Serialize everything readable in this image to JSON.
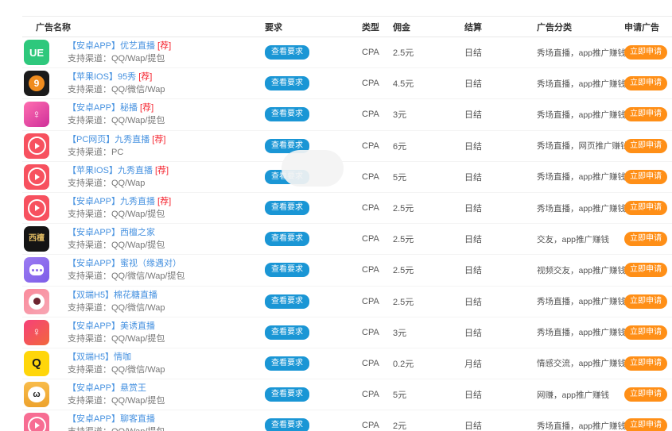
{
  "table": {
    "columns": [
      {
        "key": "name",
        "label": "广告名称"
      },
      {
        "key": "requirement",
        "label": "要求"
      },
      {
        "key": "type",
        "label": "类型"
      },
      {
        "key": "commission",
        "label": "佣金"
      },
      {
        "key": "settlement",
        "label": "结算"
      },
      {
        "key": "category",
        "label": "广告分类"
      },
      {
        "key": "apply",
        "label": "申请广告"
      }
    ],
    "view_requirement_label": "查看要求",
    "apply_label": "立即申请",
    "channel_prefix": "支持渠道：",
    "recommended_tag": "[荐]",
    "rows": [
      {
        "name": "【安卓APP】优艺直播",
        "recommended": true,
        "channels": "QQ/Wap/提包",
        "type": "CPA",
        "commission": "2.5元",
        "settlement": "日结",
        "category": "秀场直播，app推广赚钱",
        "icon": {
          "type": "text",
          "label": "ue-app-icon",
          "bg": "#2ec87c",
          "text": "UE",
          "color": "#ffffff",
          "size": 13
        }
      },
      {
        "name": "【苹果IOS】95秀",
        "recommended": true,
        "channels": "QQ/微信/Wap",
        "type": "CPA",
        "commission": "4.5元",
        "settlement": "日结",
        "category": "秀场直播，app推广赚钱",
        "icon": {
          "type": "disc",
          "label": "95show-app-icon",
          "bg": "#1b1b1b",
          "disc": "#f08c1e",
          "text": "9",
          "color": "#ffffff"
        }
      },
      {
        "name": "【安卓APP】秘播",
        "recommended": true,
        "channels": "QQ/Wap/提包",
        "type": "CPA",
        "commission": "3元",
        "settlement": "日结",
        "category": "秀场直播，app推广赚钱",
        "icon": {
          "type": "text",
          "label": "mibo-app-icon",
          "bg": "linear-gradient(140deg,#ff6eb0,#cf2f9a)",
          "text": "♀",
          "color": "#ffffff",
          "size": 15
        }
      },
      {
        "name": "【PC网页】九秀直播",
        "recommended": true,
        "channels": "PC",
        "type": "CPA",
        "commission": "6元",
        "settlement": "日结",
        "category": "秀场直播，网页推广赚钱",
        "icon": {
          "type": "ringplay",
          "label": "jiuxiu-app-icon",
          "bg": "#f7515f"
        }
      },
      {
        "name": "【苹果IOS】九秀直播",
        "recommended": true,
        "channels": "QQ/Wap",
        "type": "CPA",
        "commission": "5元",
        "settlement": "日结",
        "category": "秀场直播，app推广赚钱",
        "icon": {
          "type": "ringplay",
          "label": "jiuxiu-app-icon",
          "bg": "#f7515f"
        }
      },
      {
        "name": "【安卓APP】九秀直播",
        "recommended": true,
        "channels": "QQ/Wap/提包",
        "type": "CPA",
        "commission": "2.5元",
        "settlement": "日结",
        "category": "秀场直播，app推广赚钱",
        "icon": {
          "type": "ringplay",
          "label": "jiuxiu-app-icon",
          "bg": "#f7515f"
        }
      },
      {
        "name": "【安卓APP】西檀之家",
        "recommended": false,
        "channels": "QQ/Wap/提包",
        "type": "CPA",
        "commission": "2.5元",
        "settlement": "日结",
        "category": "交友，app推广赚钱",
        "icon": {
          "type": "text",
          "label": "xitan-app-icon",
          "bg": "#141414",
          "text": "西檀",
          "color": "#d9b560",
          "size": 10
        }
      },
      {
        "name": "【安卓APP】蜜视（缘遇对）",
        "recommended": false,
        "channels": "QQ/微信/Wap/提包",
        "type": "CPA",
        "commission": "2.5元",
        "settlement": "日结",
        "category": "视频交友，app推广赚钱",
        "icon": {
          "type": "bubble",
          "label": "mishi-app-icon",
          "bg": "linear-gradient(140deg,#9b7bf2,#7e5ee8)",
          "accent": "#8a68ec"
        }
      },
      {
        "name": "【双端H5】棉花糖直播",
        "recommended": false,
        "channels": "QQ/微信/Wap",
        "type": "CPA",
        "commission": "2.5元",
        "settlement": "日结",
        "category": "秀场直播，app推广赚钱",
        "icon": {
          "type": "eye",
          "label": "mianhuatang-app-icon",
          "bg": "linear-gradient(140deg,#fa8a9b,#f7a6b4)",
          "pupil": "#6e2430"
        }
      },
      {
        "name": "【安卓APP】美诱直播",
        "recommended": false,
        "channels": "QQ/Wap/提包",
        "type": "CPA",
        "commission": "3元",
        "settlement": "日结",
        "category": "秀场直播，app推广赚钱",
        "icon": {
          "type": "text",
          "label": "meiyou-app-icon",
          "bg": "linear-gradient(140deg,#f6407a,#f2683c)",
          "text": "♀",
          "color": "#ffffff",
          "size": 15
        }
      },
      {
        "name": "【双端H5】情咖",
        "recommended": false,
        "channels": "QQ/微信/Wap",
        "type": "CPA",
        "commission": "0.2元",
        "settlement": "月结",
        "category": "情感交流，app推广赚钱",
        "icon": {
          "type": "text",
          "label": "qingka-app-icon",
          "bg": "#ffd60a",
          "text": "Q",
          "color": "#1a1a1a",
          "size": 15
        }
      },
      {
        "name": "【安卓APP】悬赏王",
        "recommended": false,
        "channels": "QQ/Wap/提包",
        "type": "CPA",
        "commission": "5元",
        "settlement": "日结",
        "category": "网赚，app推广赚钱",
        "icon": {
          "type": "face",
          "label": "xuanshangwang-app-icon",
          "bg": "linear-gradient(180deg,#f8bc4a,#eda22d)",
          "text": "ω"
        }
      },
      {
        "name": "【安卓APP】聊客直播",
        "recommended": false,
        "channels": "QQ/Wap/提包",
        "type": "CPA",
        "commission": "2元",
        "settlement": "日结",
        "category": "秀场直播，app推广赚钱",
        "icon": {
          "type": "ringplay",
          "label": "liaoke-app-icon",
          "bg": "#f76d93"
        }
      }
    ]
  },
  "colors": {
    "link_blue": "#4792e0",
    "tag_red": "#f5222d",
    "view_button_blue": "#1a96d5",
    "apply_button_orange": "#ff8f17"
  }
}
